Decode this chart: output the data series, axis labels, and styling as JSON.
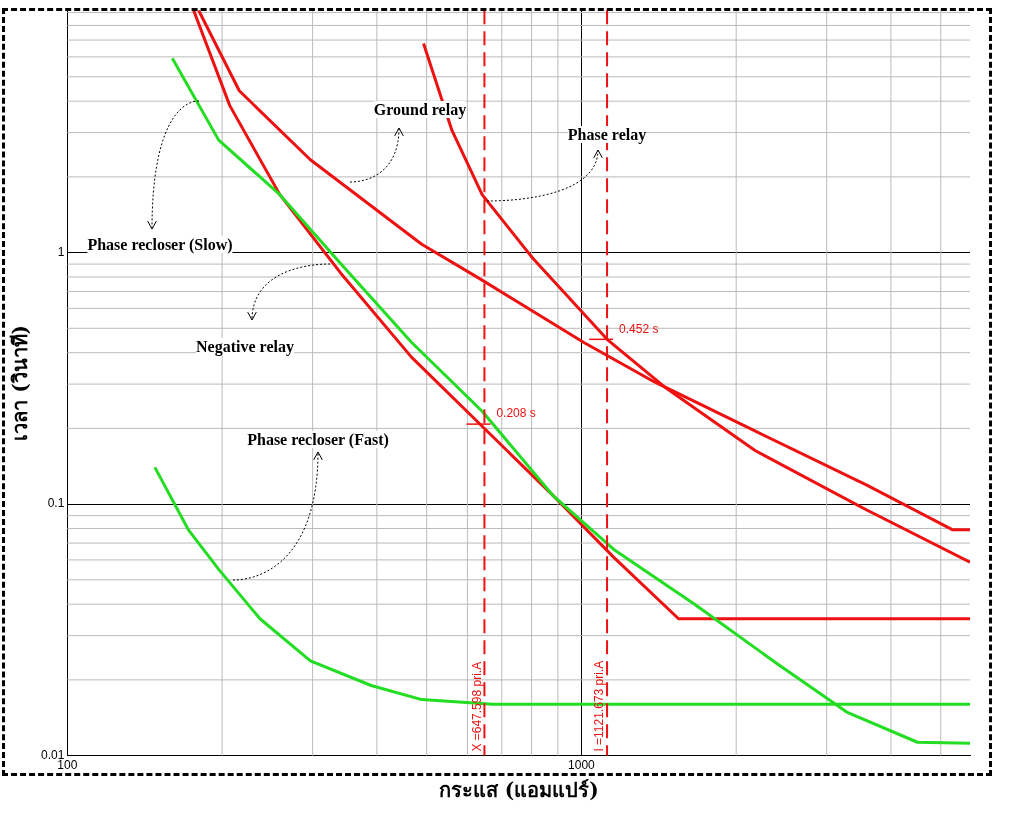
{
  "chart_data": {
    "type": "line",
    "xlabel": "กระแส (แอมแปร์)",
    "ylabel": "เวลา (วินาที)",
    "log": "xy",
    "grid": true,
    "legend": false,
    "xlim": [
      100,
      5700
    ],
    "ylim": [
      0.01,
      9.2
    ],
    "xticks": [
      100,
      1000
    ],
    "yticks": [
      0.01,
      0.1,
      1
    ],
    "series": [
      {
        "color": "#22dd22",
        "x": [
          160,
          197,
          259,
          340,
          467,
          641,
          881,
          1156,
          1660,
          2388,
          3281,
          4505,
          5700
        ],
        "values": [
          5.93,
          2.8,
          1.7,
          0.905,
          0.44,
          0.234,
          0.108,
          0.066,
          0.04,
          0.0234,
          0.0149,
          0.0113,
          0.0112
        ]
      },
      {
        "color": "#22dd22",
        "x": [
          148,
          172,
          197,
          237,
          297,
          390,
          489,
          671,
          5700
        ],
        "values": [
          0.14,
          0.079,
          0.055,
          0.035,
          0.0238,
          0.019,
          0.0167,
          0.016,
          0.016
        ]
      },
      {
        "color": "#ee1111",
        "x": [
          176,
          207,
          259,
          340,
          467,
          641,
          881,
          1156,
          1545,
          5700
        ],
        "values": [
          9.2,
          3.84,
          1.7,
          0.83,
          0.384,
          0.204,
          0.108,
          0.0614,
          0.035,
          0.035
        ]
      },
      {
        "color": "#ee1111",
        "x": [
          180,
          216,
          297,
          489,
          641,
          1009,
          1387,
          2180,
          3590,
          5275,
          5700
        ],
        "values": [
          9.2,
          4.4,
          2.34,
          1.08,
          0.777,
          0.44,
          0.306,
          0.195,
          0.119,
          0.079,
          0.079
        ]
      },
      {
        "color": "#ee1111",
        "x": [
          493,
          560,
          641,
          805,
          1121.673,
          1449,
          2180,
          3590,
          5700
        ],
        "values": [
          6.78,
          3.06,
          1.7,
          0.947,
          0.452,
          0.293,
          0.163,
          0.0947,
          0.0587
        ]
      }
    ],
    "ref_lines": [
      {
        "axis": "x",
        "value": 647.598,
        "label": "X =647.598 pri.A",
        "color": "#ee1111",
        "line_style": "dashed"
      },
      {
        "axis": "x",
        "value": 1121.673,
        "label": "I =1121.673 pri.A",
        "color": "#ee1111",
        "line_style": "dashed"
      }
    ],
    "annotations": [
      {
        "text": "Phase recloser (Slow)",
        "x": 180,
        "y": 4.0
      },
      {
        "text": "Phase recloser (Fast)",
        "x": 210,
        "y": 0.05
      },
      {
        "text": "Negative relay",
        "x": 325,
        "y": 0.9
      },
      {
        "text": "Ground relay",
        "x": 355,
        "y": 1.9
      },
      {
        "text": "Phase relay",
        "x": 656,
        "y": 1.6
      },
      {
        "text": "0.208 s",
        "x": 647.598,
        "y": 0.208
      },
      {
        "text": "0.452 s",
        "x": 1121.673,
        "y": 0.452
      }
    ]
  }
}
